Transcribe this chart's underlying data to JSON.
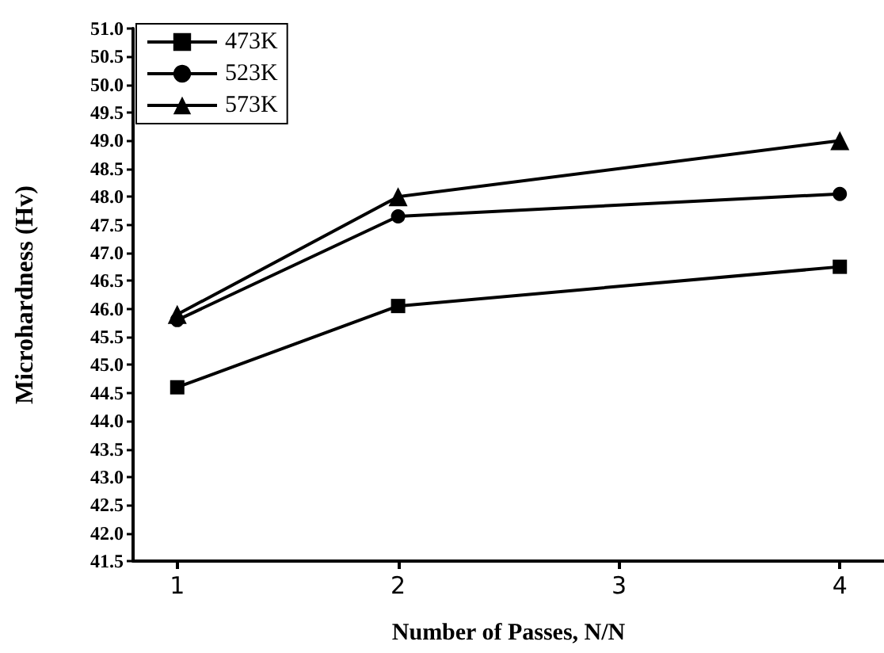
{
  "chart_data": {
    "type": "line",
    "xlabel": "Number of Passes, N/N",
    "ylabel": "Microhardness (Hv)",
    "x": [
      1,
      2,
      4
    ],
    "series": [
      {
        "name": "473K",
        "color": "#000000",
        "marker": "square",
        "values": [
          44.6,
          46.05,
          46.75
        ]
      },
      {
        "name": "523K",
        "color": "#000000",
        "marker": "circle",
        "values": [
          45.8,
          47.65,
          48.05
        ]
      },
      {
        "name": "573K",
        "color": "#000000",
        "marker": "triangle",
        "values": [
          45.9,
          48.0,
          49.0
        ]
      }
    ],
    "xlim": [
      0.8,
      4.2
    ],
    "xticks": [
      1,
      2,
      3,
      4
    ],
    "ylim": [
      41.5,
      51.0
    ],
    "yticks": [
      {
        "value": 41.5,
        "label": "41.5"
      },
      {
        "value": 42,
        "label": "42.0"
      },
      {
        "value": 42.5,
        "label": "42.5"
      },
      {
        "value": 43,
        "label": "43.0"
      },
      {
        "value": 43.5,
        "label": "43.5"
      },
      {
        "value": 44,
        "label": "44.0"
      },
      {
        "value": 44.5,
        "label": "44.5"
      },
      {
        "value": 45,
        "label": "45.0"
      },
      {
        "value": 45.5,
        "label": "45.5"
      },
      {
        "value": 46,
        "label": "46.0"
      },
      {
        "value": 46.5,
        "label": "46.5"
      },
      {
        "value": 47,
        "label": "47.0"
      },
      {
        "value": 47.5,
        "label": "47.5"
      },
      {
        "value": 48,
        "label": "48.0"
      },
      {
        "value": 48.5,
        "label": "48.5"
      },
      {
        "value": 49,
        "label": "49.0"
      },
      {
        "value": 49.5,
        "label": "49.5"
      },
      {
        "value": 50,
        "label": "50.0"
      },
      {
        "value": 50.5,
        "label": "50.5"
      },
      {
        "value": 51,
        "label": "51.0"
      }
    ],
    "grid": false,
    "legend": "top left",
    "line_style": "solid"
  }
}
